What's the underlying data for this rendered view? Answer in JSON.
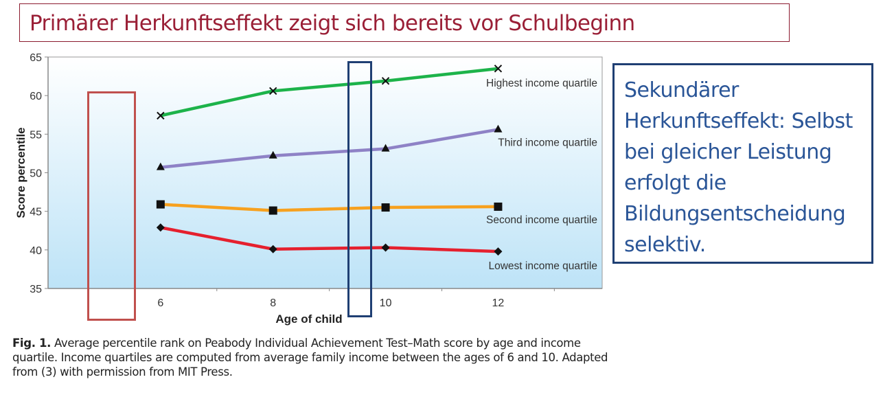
{
  "slide": {
    "title": "Primärer Herkunftseffekt zeigt sich bereits vor Schulbeginn",
    "note": "Sekundärer Herkunftseffekt: Selbst bei gleicher Leistung erfolgt die Bildungsentscheidung selektiv.",
    "caption_label": "Fig. 1.",
    "caption_text": " Average percentile rank on Peabody Individual Achievement Test–Math score by age and income quartile. Income quartiles are computed from average family income between the ages of 6 and 10. Adapted from (3) with permission from MIT Press.",
    "highlight_colors": {
      "age6": "#c0504d",
      "age10": "#1f3f73"
    }
  },
  "chart_data": {
    "type": "line",
    "xlabel": "Age of child",
    "ylabel": "Score percentile",
    "x": [
      6,
      8,
      10,
      12
    ],
    "x_tick_labels": [
      "6",
      "8",
      "10",
      "12"
    ],
    "y_ticks": [
      35,
      40,
      45,
      50,
      55,
      60,
      65
    ],
    "ylim": [
      35,
      65
    ],
    "xlim": [
      4,
      13.85
    ],
    "grid": false,
    "legend": "inline labels right of series end",
    "background": [
      "#ffffff",
      "#bde3f7"
    ],
    "series": [
      {
        "name": "Highest income quartile",
        "values": [
          57.4,
          60.6,
          61.9,
          63.5
        ],
        "color": "#1db34a",
        "marker": "x"
      },
      {
        "name": "Third income quartile",
        "values": [
          50.7,
          52.2,
          53.1,
          55.6
        ],
        "color": "#8e82c6",
        "marker": "triangle"
      },
      {
        "name": "Second income quartile",
        "values": [
          45.9,
          45.1,
          45.5,
          45.6
        ],
        "color": "#f7a11f",
        "marker": "square"
      },
      {
        "name": "Lowest income quartile",
        "values": [
          42.9,
          40.1,
          40.3,
          39.8
        ],
        "color": "#e5202e",
        "marker": "diamond"
      }
    ]
  }
}
